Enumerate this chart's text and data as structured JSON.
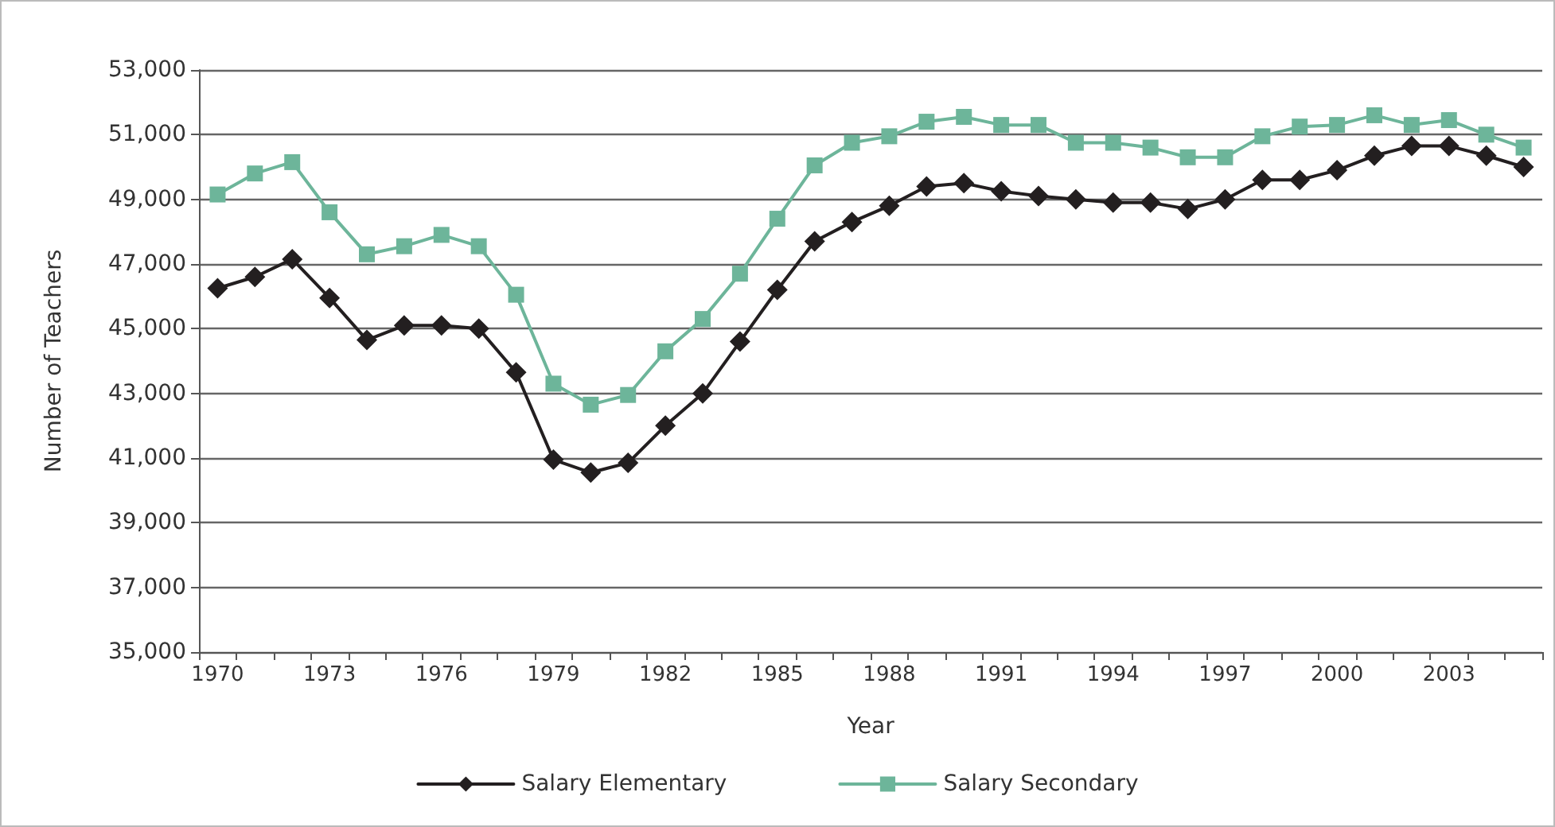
{
  "chart_data": {
    "type": "line",
    "xlabel": "Year",
    "ylabel": "Number of Teachers",
    "categories": [
      "1970",
      null,
      null,
      "1973",
      null,
      null,
      "1976",
      null,
      null,
      "1979",
      null,
      null,
      "1982",
      null,
      null,
      "1985",
      null,
      null,
      "1988",
      null,
      null,
      "1991",
      null,
      null,
      "1994",
      null,
      null,
      "1997",
      null,
      null,
      "2000",
      null,
      null,
      "2003",
      null,
      null
    ],
    "series": [
      {
        "name": "Salary Elementary",
        "color": "#231f20",
        "marker": "diamond",
        "values": [
          46250,
          46600,
          47150,
          45950,
          44650,
          45100,
          45100,
          45000,
          43650,
          40950,
          40550,
          40850,
          42000,
          43000,
          44600,
          46200,
          47700,
          48300,
          48800,
          49400,
          49500,
          49250,
          49100,
          49000,
          48900,
          48900,
          48700,
          49000,
          49600,
          49600,
          49900,
          50350,
          50650,
          50650,
          50350,
          50000
        ]
      },
      {
        "name": "Salary Secondary",
        "color": "#6db59a",
        "marker": "square",
        "values": [
          49150,
          49800,
          50150,
          48600,
          47300,
          47550,
          47900,
          47550,
          46050,
          43300,
          42650,
          42950,
          44300,
          45300,
          46700,
          48400,
          50050,
          50750,
          50950,
          51400,
          51550,
          51300,
          51300,
          50750,
          50750,
          50600,
          50300,
          50300,
          50950,
          51250,
          51300,
          51600,
          51300,
          51450,
          51000,
          50600
        ]
      }
    ],
    "ylim": [
      35000,
      53000
    ],
    "yticks": [
      {
        "value": 35000,
        "label": "35,000"
      },
      {
        "value": 37000,
        "label": "37,000"
      },
      {
        "value": 39000,
        "label": "39,000"
      },
      {
        "value": 41000,
        "label": "41,000"
      },
      {
        "value": 43000,
        "label": "43,000"
      },
      {
        "value": 45000,
        "label": "45,000"
      },
      {
        "value": 47000,
        "label": "47,000"
      },
      {
        "value": 49000,
        "label": "49,000"
      },
      {
        "value": 51000,
        "label": "51,000"
      },
      {
        "value": 53000,
        "label": "53,000"
      }
    ],
    "grid": "y",
    "legend": "bottom",
    "line_style": "solid"
  }
}
